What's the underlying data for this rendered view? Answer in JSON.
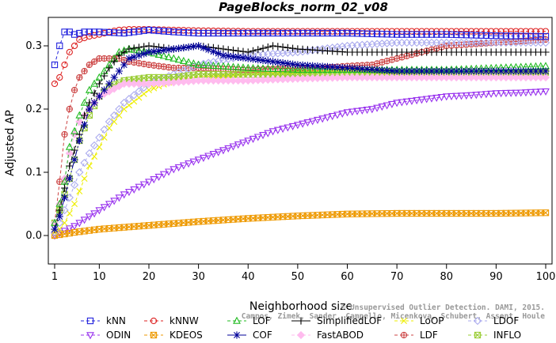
{
  "chart_data": {
    "type": "line",
    "title": "PageBlocks_norm_02_v08",
    "xlabel": "Neighborhood size",
    "ylabel": "Adjusted AP",
    "xlim": [
      1,
      100
    ],
    "ylim": [
      -0.045,
      0.345
    ],
    "x_ticks": [
      1,
      10,
      20,
      30,
      40,
      50,
      60,
      70,
      80,
      90,
      100
    ],
    "x_tick_labels": [
      "1",
      "10",
      "20",
      "30",
      "40",
      "50",
      "60",
      "70",
      "80",
      "90",
      "100"
    ],
    "y_ticks": [
      0.0,
      0.1,
      0.2,
      0.3
    ],
    "y_tick_labels": [
      "0.0",
      "0.1",
      "0.2",
      "0.3"
    ],
    "legend_position": "bottom",
    "watermark": [
      "© Unsupervised Outlier Detection. DAMI, 2015.",
      "Campos, Zimek, Sander, Campello, Micenkova, Schubert, Assent, Houle"
    ],
    "series": [
      {
        "name": "kNN",
        "color": "#2222dd",
        "marker": "square",
        "dash": "4,3",
        "x": [
          1,
          2,
          3,
          4,
          5,
          7,
          10,
          15,
          20,
          25,
          30,
          40,
          50,
          60,
          70,
          80,
          90,
          100
        ],
        "y": [
          0.27,
          0.3,
          0.322,
          0.322,
          0.318,
          0.322,
          0.322,
          0.32,
          0.325,
          0.322,
          0.32,
          0.32,
          0.32,
          0.32,
          0.318,
          0.318,
          0.316,
          0.315
        ]
      },
      {
        "name": "kNNW",
        "color": "#dd2222",
        "marker": "circle",
        "dash": "4,3",
        "x": [
          1,
          2,
          3,
          4,
          5,
          6,
          8,
          10,
          12,
          14,
          16,
          20,
          30,
          40,
          50,
          60,
          70,
          80,
          90,
          100
        ],
        "y": [
          0.24,
          0.25,
          0.27,
          0.29,
          0.3,
          0.31,
          0.315,
          0.318,
          0.322,
          0.325,
          0.326,
          0.326,
          0.324,
          0.323,
          0.323,
          0.323,
          0.323,
          0.323,
          0.323,
          0.323
        ]
      },
      {
        "name": "LOF",
        "color": "#22bb22",
        "marker": "triangle",
        "dash": "4,3",
        "x": [
          1,
          2,
          3,
          4,
          5,
          6,
          7,
          8,
          10,
          12,
          14,
          16,
          20,
          25,
          30,
          40,
          50,
          60,
          70,
          80,
          90,
          100
        ],
        "y": [
          0.02,
          0.05,
          0.085,
          0.14,
          0.165,
          0.19,
          0.21,
          0.23,
          0.25,
          0.27,
          0.29,
          0.295,
          0.29,
          0.28,
          0.27,
          0.265,
          0.262,
          0.262,
          0.262,
          0.262,
          0.265,
          0.268
        ]
      },
      {
        "name": "SimplifiedLOF",
        "color": "#000000",
        "marker": "plus",
        "dash": "8,3,2,3",
        "x": [
          1,
          2,
          3,
          4,
          5,
          6,
          7,
          8,
          10,
          12,
          14,
          16,
          20,
          25,
          30,
          35,
          40,
          45,
          50,
          60,
          70,
          80,
          90,
          100
        ],
        "y": [
          0.01,
          0.04,
          0.075,
          0.11,
          0.135,
          0.16,
          0.19,
          0.21,
          0.24,
          0.265,
          0.285,
          0.295,
          0.3,
          0.295,
          0.3,
          0.295,
          0.29,
          0.3,
          0.295,
          0.29,
          0.29,
          0.29,
          0.29,
          0.29
        ]
      },
      {
        "name": "LoOP",
        "color": "#eeee00",
        "marker": "x",
        "dash": "4,3",
        "x": [
          1,
          2,
          3,
          4,
          5,
          6,
          8,
          10,
          12,
          15,
          20,
          25,
          30,
          40,
          50,
          60,
          70,
          80,
          90,
          100
        ],
        "y": [
          0.005,
          0.01,
          0.02,
          0.035,
          0.05,
          0.07,
          0.11,
          0.14,
          0.17,
          0.2,
          0.23,
          0.245,
          0.25,
          0.255,
          0.258,
          0.26,
          0.258,
          0.26,
          0.26,
          0.26
        ]
      },
      {
        "name": "LDOF",
        "color": "#aaaaee",
        "marker": "diamond",
        "dash": "4,3",
        "x": [
          1,
          2,
          3,
          4,
          5,
          6,
          8,
          10,
          12,
          15,
          20,
          25,
          30,
          40,
          50,
          60,
          70,
          80,
          90,
          100
        ],
        "y": [
          0.005,
          0.02,
          0.04,
          0.06,
          0.08,
          0.1,
          0.13,
          0.155,
          0.18,
          0.21,
          0.24,
          0.255,
          0.27,
          0.285,
          0.29,
          0.3,
          0.305,
          0.305,
          0.305,
          0.305
        ]
      },
      {
        "name": "ODIN",
        "color": "#9933ee",
        "marker": "triangle-down",
        "dash": "4,3",
        "x": [
          1,
          5,
          10,
          15,
          20,
          25,
          30,
          35,
          40,
          45,
          50,
          55,
          60,
          65,
          70,
          75,
          80,
          85,
          90,
          95,
          100
        ],
        "y": [
          0.0,
          0.015,
          0.04,
          0.065,
          0.085,
          0.105,
          0.12,
          0.135,
          0.15,
          0.165,
          0.175,
          0.185,
          0.195,
          0.2,
          0.21,
          0.215,
          0.22,
          0.222,
          0.225,
          0.226,
          0.228
        ]
      },
      {
        "name": "KDEOS",
        "color": "#ee9900",
        "marker": "square-x",
        "dash": "4,3",
        "x": [
          1,
          5,
          10,
          20,
          30,
          40,
          50,
          60,
          70,
          80,
          90,
          100
        ],
        "y": [
          0.0,
          0.005,
          0.01,
          0.016,
          0.022,
          0.027,
          0.031,
          0.034,
          0.035,
          0.035,
          0.035,
          0.036
        ]
      },
      {
        "name": "COF",
        "color": "#000099",
        "marker": "asterisk",
        "dash": "8,3,2,3",
        "x": [
          1,
          2,
          3,
          4,
          5,
          6,
          8,
          10,
          12,
          14,
          16,
          20,
          25,
          30,
          35,
          40,
          45,
          50,
          60,
          70,
          80,
          90,
          100
        ],
        "y": [
          0.01,
          0.03,
          0.06,
          0.09,
          0.12,
          0.15,
          0.2,
          0.22,
          0.24,
          0.26,
          0.28,
          0.29,
          0.295,
          0.3,
          0.285,
          0.28,
          0.275,
          0.27,
          0.265,
          0.26,
          0.26,
          0.26,
          0.26
        ]
      },
      {
        "name": "FastABOD",
        "color": "#ffbbee",
        "marker": "diamond-filled",
        "dash": "4,3",
        "x": [
          1,
          2,
          3,
          4,
          5,
          6,
          8,
          10,
          15,
          20,
          25,
          30,
          40,
          50,
          60,
          70,
          80,
          90,
          100
        ],
        "y": [
          0.02,
          0.05,
          0.09,
          0.13,
          0.16,
          0.18,
          0.2,
          0.22,
          0.24,
          0.24,
          0.242,
          0.245,
          0.245,
          0.248,
          0.25,
          0.25,
          0.25,
          0.25,
          0.25
        ]
      },
      {
        "name": "LDF",
        "color": "#cc4444",
        "marker": "circle-plus",
        "dash": "4,3",
        "x": [
          1,
          2,
          3,
          4,
          5,
          6,
          8,
          10,
          12,
          14,
          16,
          20,
          25,
          30,
          40,
          50,
          55,
          60,
          65,
          70,
          75,
          80,
          90,
          100
        ],
        "y": [
          0.02,
          0.085,
          0.16,
          0.2,
          0.23,
          0.25,
          0.27,
          0.28,
          0.28,
          0.28,
          0.275,
          0.27,
          0.265,
          0.265,
          0.262,
          0.265,
          0.265,
          0.268,
          0.27,
          0.28,
          0.29,
          0.3,
          0.305,
          0.31
        ]
      },
      {
        "name": "INFLO",
        "color": "#99cc33",
        "marker": "square-x",
        "dash": "4,3",
        "x": [
          1,
          2,
          3,
          4,
          5,
          6,
          8,
          10,
          12,
          15,
          20,
          25,
          30,
          40,
          50,
          60,
          70,
          80,
          90,
          100
        ],
        "y": [
          0.02,
          0.04,
          0.065,
          0.09,
          0.12,
          0.15,
          0.19,
          0.22,
          0.235,
          0.245,
          0.25,
          0.25,
          0.255,
          0.255,
          0.255,
          0.255,
          0.255,
          0.255,
          0.255,
          0.258
        ]
      }
    ]
  }
}
